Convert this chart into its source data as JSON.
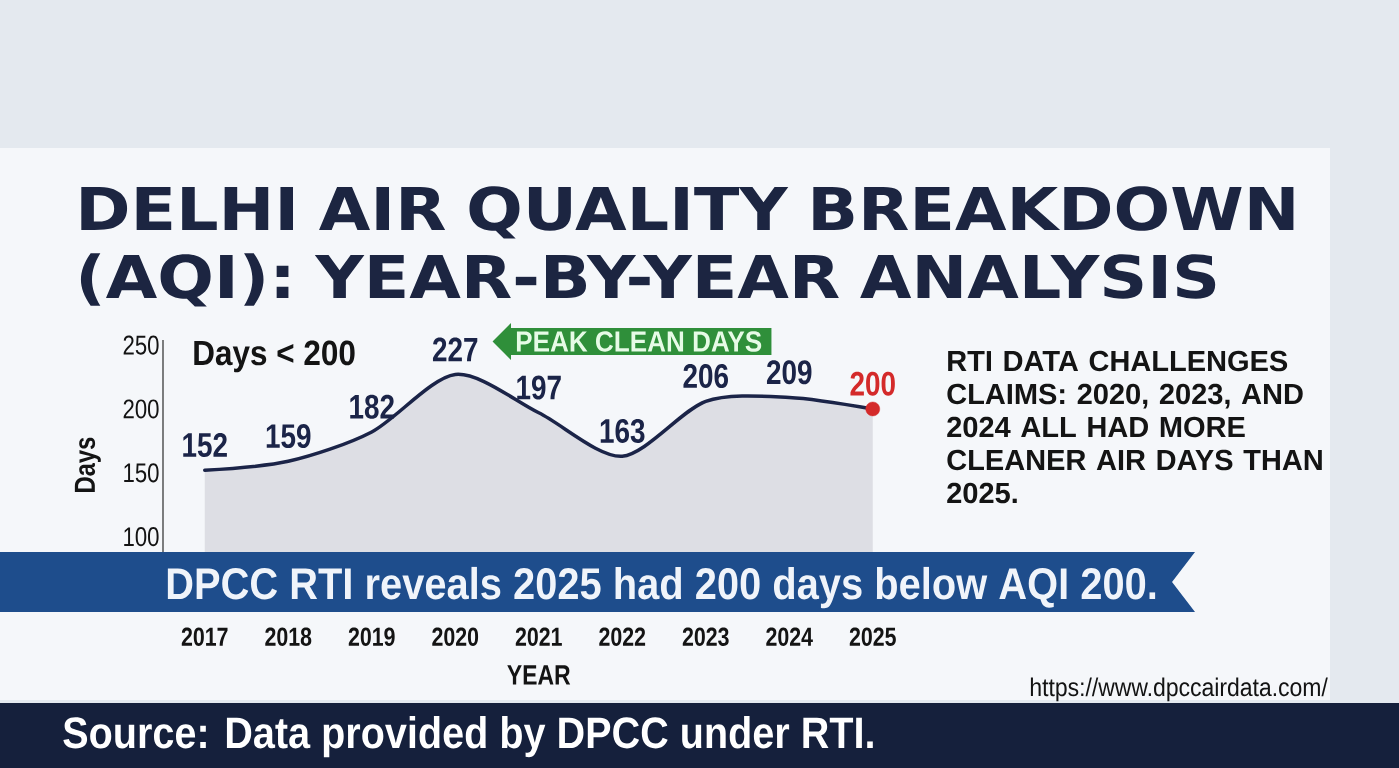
{
  "chart_data": {
    "type": "area",
    "title": "DELHI AIR QUALITY BREAKDOWN (AQI): YEAR-BY-YEAR ANALYSIS",
    "xlabel": "YEAR",
    "ylabel": "Days",
    "categories": [
      "2017",
      "2018",
      "2019",
      "2020",
      "2021",
      "2022",
      "2023",
      "2024",
      "2025"
    ],
    "series": [
      {
        "color": "#1b2448",
        "values": [
          152,
          159,
          182,
          227,
          197,
          163,
          206,
          209,
          200
        ],
        "value_labels": [
          "152",
          "159",
          "182",
          "227",
          "197",
          "163",
          "206",
          "209",
          null
        ]
      },
      {
        "type": "scatter",
        "values": [
          null,
          null,
          null,
          null,
          null,
          null,
          null,
          null,
          200
        ],
        "color": "#d42a2a",
        "marker": "circle",
        "value_labels": [
          null,
          null,
          null,
          null,
          null,
          null,
          null,
          null,
          "200"
        ]
      }
    ],
    "ylim": [
      88,
      254
    ],
    "yticks": [
      100,
      150,
      200,
      250
    ],
    "annotations": [
      "Days < 200",
      {
        "text": "PEAK CLEAN DAYS",
        "x": "2020",
        "y": 227
      },
      "RTI DATA CHALLENGES CLAIMS: 2020, 2023, AND 2024 ALL HAD MORE CLEANER AIR DAYS THAN 2025.",
      "DPCC RTI reveals 2025 had 200 days below AQI 200.",
      "https://www.dpccairdata.com/",
      "Source: Data provided by DPCC under RTI."
    ]
  }
}
